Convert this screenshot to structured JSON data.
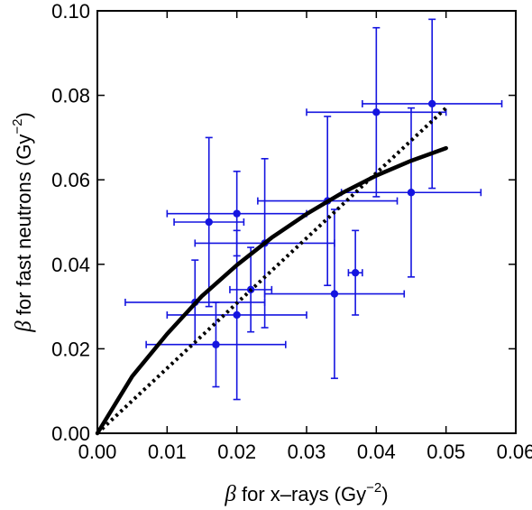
{
  "chart_data": {
    "type": "scatter",
    "xlabel": {
      "symbol": "β",
      "text": " for x–rays (Gy",
      "sup": "−2",
      "close": ")"
    },
    "ylabel": {
      "symbol": "β",
      "text": " for fast neutrons (Gy",
      "sup": "−2",
      "close": ")"
    },
    "xlim": [
      0,
      0.06
    ],
    "ylim": [
      0,
      0.1
    ],
    "xticks": [
      "0.00",
      "0.01",
      "0.02",
      "0.03",
      "0.04",
      "0.05",
      "0.06"
    ],
    "yticks": [
      "0.00",
      "0.02",
      "0.04",
      "0.06",
      "0.08",
      "0.10"
    ],
    "grid": false,
    "colors": {
      "points": "#1515e0",
      "curves": "#000000"
    },
    "points": [
      {
        "x": 0.014,
        "y": 0.031,
        "xerr": [
          0.004,
          0.024
        ],
        "yerr": [
          0.021,
          0.041
        ]
      },
      {
        "x": 0.016,
        "y": 0.05,
        "xerr": [
          0.011,
          0.021
        ],
        "yerr": [
          0.03,
          0.07
        ]
      },
      {
        "x": 0.017,
        "y": 0.021,
        "xerr": [
          0.007,
          0.027
        ],
        "yerr": [
          0.011,
          0.031
        ]
      },
      {
        "x": 0.02,
        "y": 0.052,
        "xerr": [
          0.01,
          0.03
        ],
        "yerr": [
          0.042,
          0.062
        ]
      },
      {
        "x": 0.02,
        "y": 0.028,
        "xerr": [
          0.01,
          0.03
        ],
        "yerr": [
          0.008,
          0.048
        ]
      },
      {
        "x": 0.022,
        "y": 0.034,
        "xerr": [
          0.019,
          0.025
        ],
        "yerr": [
          0.024,
          0.044
        ]
      },
      {
        "x": 0.024,
        "y": 0.045,
        "xerr": [
          0.014,
          0.034
        ],
        "yerr": [
          0.025,
          0.065
        ]
      },
      {
        "x": 0.033,
        "y": 0.055,
        "xerr": [
          0.023,
          0.043
        ],
        "yerr": [
          0.035,
          0.075
        ]
      },
      {
        "x": 0.034,
        "y": 0.033,
        "xerr": [
          0.024,
          0.044
        ],
        "yerr": [
          0.013,
          0.053
        ]
      },
      {
        "x": 0.037,
        "y": 0.038,
        "xerr": [
          0.036,
          0.038
        ],
        "yerr": [
          0.028,
          0.048
        ]
      },
      {
        "x": 0.04,
        "y": 0.076,
        "xerr": [
          0.03,
          0.05
        ],
        "yerr": [
          0.056,
          0.096
        ]
      },
      {
        "x": 0.045,
        "y": 0.057,
        "xerr": [
          0.035,
          0.055
        ],
        "yerr": [
          0.037,
          0.077
        ]
      },
      {
        "x": 0.048,
        "y": 0.078,
        "xerr": [
          0.038,
          0.058
        ],
        "yerr": [
          0.058,
          0.098
        ]
      }
    ],
    "curves": [
      {
        "style": "solid",
        "x": [
          0,
          0.005,
          0.01,
          0.015,
          0.02,
          0.025,
          0.03,
          0.035,
          0.04,
          0.045,
          0.05
        ],
        "y": [
          0,
          0.0135,
          0.0235,
          0.0325,
          0.0398,
          0.0463,
          0.0519,
          0.0568,
          0.061,
          0.0645,
          0.0675
        ]
      },
      {
        "style": "dotted",
        "x": [
          0,
          0.05
        ],
        "y": [
          0,
          0.077
        ]
      }
    ]
  }
}
